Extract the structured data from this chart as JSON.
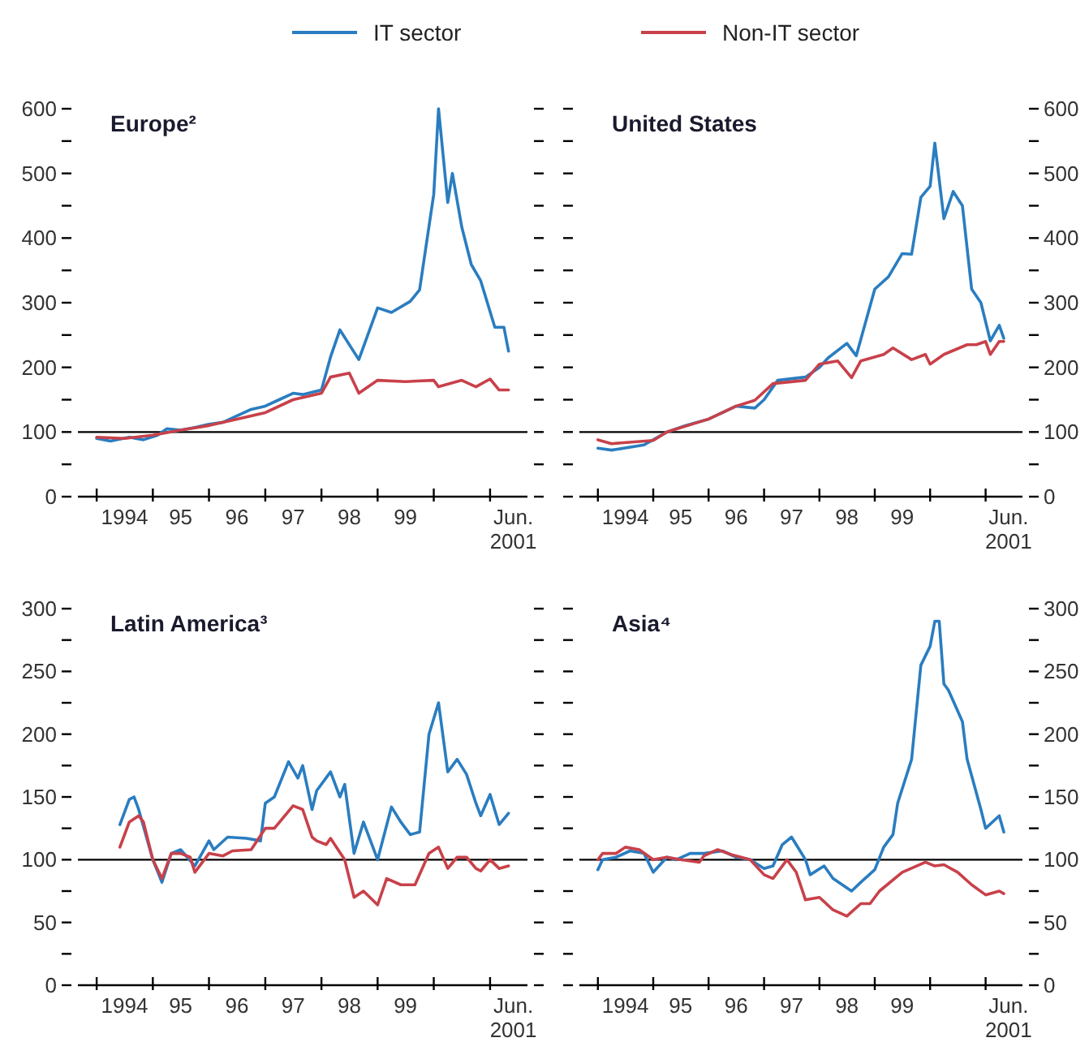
{
  "chart_data": [
    {
      "type": "line",
      "title": "Europe²",
      "legend": "top",
      "xlim": [
        "1993-09",
        "2001-09"
      ],
      "ylim": [
        0,
        600
      ],
      "xticks": [
        {
          "value": "1994-01",
          "label": null
        },
        {
          "value": "1995-01",
          "label": null
        },
        {
          "value": "1996-01",
          "label": null
        },
        {
          "value": "1997-01",
          "label": null
        },
        {
          "value": "1998-01",
          "label": null
        },
        {
          "value": "1999-01",
          "label": null
        },
        {
          "value": "2000-01",
          "label": null
        },
        {
          "value": "2001-01",
          "label": null
        },
        {
          "value": "1994-07",
          "label": "1994"
        },
        {
          "value": "1995-07",
          "label": "95"
        },
        {
          "value": "1996-07",
          "label": "96"
        },
        {
          "value": "1997-07",
          "label": "97"
        },
        {
          "value": "1998-07",
          "label": "98"
        },
        {
          "value": "1999-07",
          "label": "99"
        },
        {
          "value": "2001-06",
          "label": "Jun. 2001"
        }
      ],
      "yticks": [
        0,
        {
          "value": 50,
          "label": null
        },
        100,
        {
          "value": 150,
          "label": null
        },
        200,
        {
          "value": 250,
          "label": null
        },
        300,
        {
          "value": 350,
          "label": null
        },
        400,
        {
          "value": 450,
          "label": null
        },
        500,
        {
          "value": 550,
          "label": null
        },
        600
      ],
      "ref_lines": [
        {
          "axis": "y",
          "value": 100,
          "color": "#000000"
        }
      ],
      "series": [
        {
          "name": "IT sector",
          "color": "#2a7dc0",
          "x": [
            "1994-01",
            "1994-04",
            "1994-08",
            "1994-11",
            "1995-02",
            "1995-04",
            "1995-07",
            "1995-10",
            "1996-01",
            "1996-04",
            "1996-07",
            "1996-10",
            "1997-01",
            "1997-04",
            "1997-07",
            "1997-09",
            "1998-01",
            "1998-03",
            "1998-05",
            "1998-09",
            "1999-01",
            "1999-04",
            "1999-08",
            "1999-10",
            "2000-01",
            "2000-02",
            "2000-04",
            "2000-05",
            "2000-07",
            "2000-09",
            "2000-11",
            "2001-02",
            "2001-04",
            "2001-05"
          ],
          "values": [
            90,
            86,
            92,
            88,
            95,
            105,
            103,
            107,
            112,
            115,
            125,
            135,
            140,
            150,
            160,
            158,
            165,
            216,
            258,
            212,
            292,
            285,
            302,
            320,
            468,
            600,
            455,
            500,
            417,
            359,
            334,
            262,
            262,
            225
          ]
        },
        {
          "name": "Non-IT sector",
          "color": "#c8414a",
          "x": [
            "1994-01",
            "1994-07",
            "1995-01",
            "1995-07",
            "1996-01",
            "1996-07",
            "1997-01",
            "1997-07",
            "1998-01",
            "1998-03",
            "1998-07",
            "1998-09",
            "1999-01",
            "1999-07",
            "2000-01",
            "2000-02",
            "2000-07",
            "2000-10",
            "2001-01",
            "2001-03",
            "2001-05"
          ],
          "values": [
            92,
            90,
            95,
            103,
            110,
            120,
            130,
            150,
            160,
            185,
            191,
            160,
            180,
            178,
            180,
            170,
            180,
            170,
            182,
            165,
            165
          ]
        }
      ]
    },
    {
      "type": "line",
      "title": "United States",
      "xlim": [
        "1993-09",
        "2001-09"
      ],
      "y2lim": [
        0,
        600
      ],
      "xticks": [
        {
          "value": "1994-01",
          "label": null
        },
        {
          "value": "1995-01",
          "label": null
        },
        {
          "value": "1996-01",
          "label": null
        },
        {
          "value": "1997-01",
          "label": null
        },
        {
          "value": "1998-01",
          "label": null
        },
        {
          "value": "1999-01",
          "label": null
        },
        {
          "value": "2000-01",
          "label": null
        },
        {
          "value": "2001-01",
          "label": null
        },
        {
          "value": "1994-07",
          "label": "1994"
        },
        {
          "value": "1995-07",
          "label": "95"
        },
        {
          "value": "1996-07",
          "label": "96"
        },
        {
          "value": "1997-07",
          "label": "97"
        },
        {
          "value": "1998-07",
          "label": "98"
        },
        {
          "value": "1999-07",
          "label": "99"
        },
        {
          "value": "2001-06",
          "label": "Jun. 2001"
        }
      ],
      "y2ticks": [
        0,
        {
          "value": 50,
          "label": null
        },
        100,
        {
          "value": 150,
          "label": null
        },
        200,
        {
          "value": 250,
          "label": null
        },
        300,
        {
          "value": 350,
          "label": null
        },
        400,
        {
          "value": 450,
          "label": null
        },
        500,
        {
          "value": 550,
          "label": null
        },
        600
      ],
      "ref_lines": [
        {
          "axis": "y2",
          "value": 100,
          "color": "#000000"
        }
      ],
      "series": [
        {
          "axis": "y2",
          "color": "#2a7dc0",
          "x": [
            "1994-01",
            "1994-04",
            "1994-11",
            "1995-04",
            "1995-08",
            "1996-01",
            "1996-07",
            "1996-11",
            "1997-01",
            "1997-04",
            "1997-10",
            "1998-01",
            "1998-03",
            "1998-07",
            "1998-09",
            "1999-01",
            "1999-04",
            "1999-07",
            "1999-09",
            "1999-11",
            "2000-01",
            "2000-02",
            "2000-04",
            "2000-06",
            "2000-08",
            "2000-10",
            "2000-12",
            "2001-02",
            "2001-04",
            "2001-05"
          ],
          "values": [
            75,
            72,
            80,
            100,
            110,
            120,
            140,
            137,
            150,
            180,
            185,
            200,
            215,
            237,
            218,
            321,
            340,
            376,
            375,
            463,
            480,
            547,
            430,
            472,
            450,
            321,
            300,
            241,
            265,
            245
          ]
        },
        {
          "axis": "y2",
          "color": "#c8414a",
          "x": [
            "1994-01",
            "1994-04",
            "1995-01",
            "1995-04",
            "1996-01",
            "1996-07",
            "1996-11",
            "1997-03",
            "1997-10",
            "1998-01",
            "1998-05",
            "1998-08",
            "1998-10",
            "1999-03",
            "1999-05",
            "1999-09",
            "1999-12",
            "2000-01",
            "2000-04",
            "2000-09",
            "2000-11",
            "2001-01",
            "2001-02",
            "2001-04",
            "2001-05"
          ],
          "values": [
            88,
            82,
            87,
            100,
            120,
            140,
            149,
            175,
            180,
            205,
            210,
            184,
            210,
            220,
            230,
            212,
            220,
            205,
            220,
            235,
            235,
            240,
            220,
            240,
            240
          ]
        }
      ]
    },
    {
      "type": "line",
      "title": "Latin America³",
      "xlim": [
        "1993-09",
        "2001-09"
      ],
      "ylim": [
        0,
        300
      ],
      "xticks": [
        {
          "value": "1994-01",
          "label": null
        },
        {
          "value": "1995-01",
          "label": null
        },
        {
          "value": "1996-01",
          "label": null
        },
        {
          "value": "1997-01",
          "label": null
        },
        {
          "value": "1998-01",
          "label": null
        },
        {
          "value": "1999-01",
          "label": null
        },
        {
          "value": "2000-01",
          "label": null
        },
        {
          "value": "2001-01",
          "label": null
        },
        {
          "value": "1994-07",
          "label": "1994"
        },
        {
          "value": "1995-07",
          "label": "95"
        },
        {
          "value": "1996-07",
          "label": "96"
        },
        {
          "value": "1997-07",
          "label": "97"
        },
        {
          "value": "1998-07",
          "label": "98"
        },
        {
          "value": "1999-07",
          "label": "99"
        },
        {
          "value": "2001-06",
          "label": "Jun. 2001"
        }
      ],
      "yticks": [
        0,
        {
          "value": 25,
          "label": null
        },
        50,
        {
          "value": 75,
          "label": null
        },
        100,
        {
          "value": 125,
          "label": null
        },
        150,
        {
          "value": 175,
          "label": null
        },
        200,
        {
          "value": 225,
          "label": null
        },
        250,
        {
          "value": 275,
          "label": null
        },
        300
      ],
      "ref_lines": [
        {
          "axis": "y",
          "value": 100,
          "color": "#000000"
        }
      ],
      "series": [
        {
          "color": "#2a7dc0",
          "x": [
            "1994-06",
            "1994-08",
            "1994-09",
            "1994-10",
            "1995-01",
            "1995-03",
            "1995-05",
            "1995-07",
            "1995-10",
            "1996-01",
            "1996-02",
            "1996-05",
            "1996-09",
            "1996-12",
            "1997-01",
            "1997-03",
            "1997-06",
            "1997-08",
            "1997-09",
            "1997-11",
            "1997-12",
            "1998-03",
            "1998-05",
            "1998-06",
            "1998-08",
            "1998-10",
            "1999-01",
            "1999-04",
            "1999-06",
            "1999-08",
            "1999-10",
            "1999-12",
            "2000-02",
            "2000-04",
            "2000-06",
            "2000-08",
            "2000-10",
            "2000-11",
            "2001-01",
            "2001-03",
            "2001-05"
          ],
          "values": [
            128,
            148,
            150,
            140,
            100,
            82,
            105,
            108,
            95,
            115,
            108,
            118,
            117,
            115,
            145,
            150,
            178,
            165,
            175,
            140,
            155,
            170,
            150,
            160,
            105,
            130,
            100,
            142,
            130,
            120,
            122,
            200,
            225,
            170,
            180,
            168,
            145,
            135,
            152,
            128,
            137
          ]
        },
        {
          "color": "#c8414a",
          "x": [
            "1994-06",
            "1994-08",
            "1994-10",
            "1994-11",
            "1995-01",
            "1995-03",
            "1995-05",
            "1995-07",
            "1995-09",
            "1995-10",
            "1996-01",
            "1996-04",
            "1996-06",
            "1996-10",
            "1997-01",
            "1997-03",
            "1997-07",
            "1997-09",
            "1997-11",
            "1997-12",
            "1998-02",
            "1998-03",
            "1998-06",
            "1998-08",
            "1998-10",
            "1999-01",
            "1999-03",
            "1999-06",
            "1999-09",
            "1999-12",
            "2000-02",
            "2000-04",
            "2000-06",
            "2000-08",
            "2000-10",
            "2000-11",
            "2001-01",
            "2001-03",
            "2001-05"
          ],
          "values": [
            110,
            130,
            135,
            130,
            100,
            85,
            105,
            105,
            102,
            90,
            105,
            103,
            107,
            108,
            125,
            125,
            143,
            140,
            118,
            115,
            112,
            117,
            100,
            70,
            75,
            64,
            85,
            80,
            80,
            105,
            110,
            93,
            102,
            102,
            93,
            91,
            100,
            93,
            95
          ]
        }
      ]
    },
    {
      "type": "line",
      "title": "Asia⁴",
      "xlim": [
        "1993-09",
        "2001-09"
      ],
      "y2lim": [
        0,
        300
      ],
      "xticks": [
        {
          "value": "1994-01",
          "label": null
        },
        {
          "value": "1995-01",
          "label": null
        },
        {
          "value": "1996-01",
          "label": null
        },
        {
          "value": "1997-01",
          "label": null
        },
        {
          "value": "1998-01",
          "label": null
        },
        {
          "value": "1999-01",
          "label": null
        },
        {
          "value": "2000-01",
          "label": null
        },
        {
          "value": "2001-01",
          "label": null
        },
        {
          "value": "1994-07",
          "label": "1994"
        },
        {
          "value": "1995-07",
          "label": "95"
        },
        {
          "value": "1996-07",
          "label": "96"
        },
        {
          "value": "1997-07",
          "label": "97"
        },
        {
          "value": "1998-07",
          "label": "98"
        },
        {
          "value": "1999-07",
          "label": "99"
        },
        {
          "value": "2001-06",
          "label": "Jun. 2001"
        }
      ],
      "y2ticks": [
        0,
        {
          "value": 25,
          "label": null
        },
        50,
        {
          "value": 75,
          "label": null
        },
        100,
        {
          "value": 125,
          "label": null
        },
        150,
        {
          "value": 175,
          "label": null
        },
        200,
        {
          "value": 225,
          "label": null
        },
        250,
        {
          "value": 275,
          "label": null
        },
        300
      ],
      "ref_lines": [
        {
          "axis": "y2",
          "value": 100,
          "color": "#000000"
        }
      ],
      "series": [
        {
          "axis": "y2",
          "color": "#2a7dc0",
          "x": [
            "1994-01",
            "1994-02",
            "1994-05",
            "1994-08",
            "1994-11",
            "1995-01",
            "1995-04",
            "1995-06",
            "1995-09",
            "1995-12",
            "1996-04",
            "1996-07",
            "1996-10",
            "1997-01",
            "1997-03",
            "1997-05",
            "1997-07",
            "1997-08",
            "1997-10",
            "1997-11",
            "1998-02",
            "1998-04",
            "1998-06",
            "1998-08",
            "1998-10",
            "1999-01",
            "1999-03",
            "1999-05",
            "1999-06",
            "1999-09",
            "1999-11",
            "2000-01",
            "2000-02",
            "2000-03",
            "2000-04",
            "2000-05",
            "2000-08",
            "2000-09",
            "2000-12",
            "2001-01",
            "2001-04",
            "2001-05"
          ],
          "values": [
            92,
            100,
            102,
            107,
            105,
            90,
            102,
            100,
            105,
            105,
            107,
            102,
            100,
            93,
            95,
            112,
            118,
            112,
            100,
            88,
            95,
            85,
            80,
            75,
            82,
            92,
            110,
            120,
            145,
            180,
            255,
            270,
            290,
            290,
            240,
            235,
            210,
            180,
            140,
            125,
            135,
            122
          ]
        },
        {
          "axis": "y2",
          "color": "#c8414a",
          "x": [
            "1994-01",
            "1994-02",
            "1994-05",
            "1994-07",
            "1994-10",
            "1995-01",
            "1995-04",
            "1995-07",
            "1995-11",
            "1995-12",
            "1996-03",
            "1996-06",
            "1996-10",
            "1997-01",
            "1997-03",
            "1997-06",
            "1997-08",
            "1997-10",
            "1998-01",
            "1998-04",
            "1998-07",
            "1998-10",
            "1998-12",
            "1999-02",
            "1999-07",
            "1999-12",
            "2000-02",
            "2000-04",
            "2000-07",
            "2000-10",
            "2001-01",
            "2001-04",
            "2001-05"
          ],
          "values": [
            100,
            105,
            105,
            110,
            108,
            100,
            102,
            100,
            98,
            103,
            108,
            104,
            100,
            88,
            85,
            100,
            90,
            68,
            70,
            60,
            55,
            65,
            65,
            75,
            90,
            98,
            95,
            96,
            90,
            80,
            72,
            75,
            73
          ]
        }
      ]
    }
  ]
}
